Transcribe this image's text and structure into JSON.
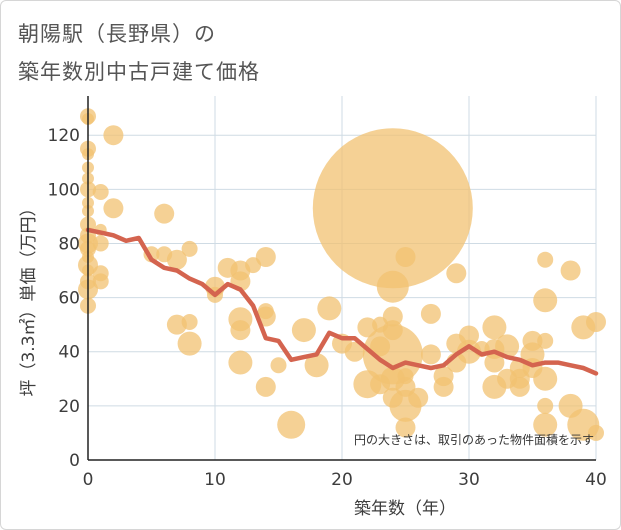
{
  "chart_data": {
    "type": "scatter",
    "title_line1": "朝陽駅（長野県）の",
    "title_line2": "築年数別中古戸建て価格",
    "xlabel": "築年数（年）",
    "ylabel": "坪（3.3㎡）単価（万円）",
    "xlim": [
      0,
      40
    ],
    "ylim": [
      0,
      133
    ],
    "x_ticks": [
      0,
      10,
      20,
      30,
      40
    ],
    "y_ticks": [
      0,
      20,
      40,
      60,
      80,
      100,
      120
    ],
    "note": "円の大きさは、取引のあった物件面積を示す",
    "colors": {
      "bubble": "#f2c171",
      "line": "#d4644f",
      "grid": "#cfdbe4",
      "axis": "#222222"
    },
    "average_line": {
      "x": [
        0,
        1,
        2,
        3,
        4,
        5,
        6,
        7,
        8,
        9,
        10,
        11,
        12,
        13,
        14,
        15,
        16,
        17,
        18,
        19,
        20,
        21,
        22,
        23,
        24,
        25,
        26,
        27,
        28,
        29,
        30,
        31,
        32,
        33,
        34,
        35,
        36,
        37,
        38,
        39,
        40
      ],
      "y": [
        85,
        84,
        83,
        81,
        82,
        74,
        71,
        70,
        67,
        65,
        61,
        65,
        63,
        57,
        45,
        44,
        37,
        38,
        39,
        47,
        45,
        45,
        41,
        37,
        34,
        36,
        35,
        34,
        35,
        39,
        42,
        39,
        40,
        38,
        37,
        35,
        36,
        36,
        35,
        34,
        32
      ]
    },
    "points": [
      {
        "x": 0,
        "y": 127,
        "s": 4
      },
      {
        "x": 0,
        "y": 126,
        "s": 3
      },
      {
        "x": 0,
        "y": 115,
        "s": 4
      },
      {
        "x": 0,
        "y": 113,
        "s": 3
      },
      {
        "x": 0,
        "y": 108,
        "s": 3
      },
      {
        "x": 0,
        "y": 104,
        "s": 3
      },
      {
        "x": 0,
        "y": 100,
        "s": 4
      },
      {
        "x": 0,
        "y": 95,
        "s": 3
      },
      {
        "x": 0,
        "y": 92,
        "s": 3
      },
      {
        "x": 0,
        "y": 87,
        "s": 4
      },
      {
        "x": 0,
        "y": 83,
        "s": 4
      },
      {
        "x": 0,
        "y": 80,
        "s": 5
      },
      {
        "x": 0,
        "y": 78,
        "s": 4
      },
      {
        "x": 0,
        "y": 75,
        "s": 3
      },
      {
        "x": 0,
        "y": 72,
        "s": 5
      },
      {
        "x": 0,
        "y": 70,
        "s": 3
      },
      {
        "x": 0,
        "y": 66,
        "s": 4
      },
      {
        "x": 0,
        "y": 63,
        "s": 5
      },
      {
        "x": 0,
        "y": 57,
        "s": 4
      },
      {
        "x": 1,
        "y": 99,
        "s": 4
      },
      {
        "x": 1,
        "y": 85,
        "s": 3
      },
      {
        "x": 1,
        "y": 80,
        "s": 4
      },
      {
        "x": 1,
        "y": 69,
        "s": 4
      },
      {
        "x": 1,
        "y": 66,
        "s": 4
      },
      {
        "x": 2,
        "y": 120,
        "s": 5
      },
      {
        "x": 2,
        "y": 93,
        "s": 5
      },
      {
        "x": 5,
        "y": 76,
        "s": 4
      },
      {
        "x": 6,
        "y": 91,
        "s": 5
      },
      {
        "x": 6,
        "y": 76,
        "s": 4
      },
      {
        "x": 7,
        "y": 74,
        "s": 5
      },
      {
        "x": 7,
        "y": 50,
        "s": 5
      },
      {
        "x": 8,
        "y": 78,
        "s": 4
      },
      {
        "x": 8,
        "y": 51,
        "s": 4
      },
      {
        "x": 8,
        "y": 43,
        "s": 6
      },
      {
        "x": 10,
        "y": 64,
        "s": 5
      },
      {
        "x": 10,
        "y": 61,
        "s": 4
      },
      {
        "x": 11,
        "y": 71,
        "s": 5
      },
      {
        "x": 12,
        "y": 70,
        "s": 5
      },
      {
        "x": 12,
        "y": 66,
        "s": 5
      },
      {
        "x": 12,
        "y": 52,
        "s": 6
      },
      {
        "x": 12,
        "y": 48,
        "s": 5
      },
      {
        "x": 12,
        "y": 36,
        "s": 6
      },
      {
        "x": 13,
        "y": 72,
        "s": 4
      },
      {
        "x": 14,
        "y": 75,
        "s": 5
      },
      {
        "x": 14,
        "y": 55,
        "s": 4
      },
      {
        "x": 14,
        "y": 53,
        "s": 5
      },
      {
        "x": 14,
        "y": 27,
        "s": 5
      },
      {
        "x": 15,
        "y": 35,
        "s": 4
      },
      {
        "x": 16,
        "y": 13,
        "s": 7
      },
      {
        "x": 17,
        "y": 48,
        "s": 6
      },
      {
        "x": 18,
        "y": 35,
        "s": 6
      },
      {
        "x": 19,
        "y": 56,
        "s": 6
      },
      {
        "x": 20,
        "y": 43,
        "s": 5
      },
      {
        "x": 21,
        "y": 40,
        "s": 5
      },
      {
        "x": 22,
        "y": 49,
        "s": 5
      },
      {
        "x": 22,
        "y": 28,
        "s": 7
      },
      {
        "x": 23,
        "y": 50,
        "s": 4
      },
      {
        "x": 23,
        "y": 42,
        "s": 5
      },
      {
        "x": 23,
        "y": 28,
        "s": 5
      },
      {
        "x": 24,
        "y": 93,
        "s": 40
      },
      {
        "x": 24,
        "y": 64,
        "s": 8
      },
      {
        "x": 24,
        "y": 53,
        "s": 5
      },
      {
        "x": 24,
        "y": 48,
        "s": 5
      },
      {
        "x": 24,
        "y": 39,
        "s": 15
      },
      {
        "x": 24,
        "y": 30,
        "s": 6
      },
      {
        "x": 24,
        "y": 23,
        "s": 5
      },
      {
        "x": 25,
        "y": 75,
        "s": 5
      },
      {
        "x": 25,
        "y": 31,
        "s": 4
      },
      {
        "x": 25,
        "y": 27,
        "s": 5
      },
      {
        "x": 25,
        "y": 20,
        "s": 8
      },
      {
        "x": 25,
        "y": 12,
        "s": 5
      },
      {
        "x": 26,
        "y": 23,
        "s": 5
      },
      {
        "x": 27,
        "y": 54,
        "s": 5
      },
      {
        "x": 27,
        "y": 39,
        "s": 5
      },
      {
        "x": 28,
        "y": 31,
        "s": 5
      },
      {
        "x": 28,
        "y": 27,
        "s": 5
      },
      {
        "x": 29,
        "y": 69,
        "s": 5
      },
      {
        "x": 29,
        "y": 43,
        "s": 5
      },
      {
        "x": 29,
        "y": 36,
        "s": 5
      },
      {
        "x": 30,
        "y": 46,
        "s": 5
      },
      {
        "x": 30,
        "y": 40,
        "s": 6
      },
      {
        "x": 31,
        "y": 41,
        "s": 4
      },
      {
        "x": 32,
        "y": 49,
        "s": 6
      },
      {
        "x": 32,
        "y": 41,
        "s": 5
      },
      {
        "x": 32,
        "y": 36,
        "s": 5
      },
      {
        "x": 32,
        "y": 27,
        "s": 6
      },
      {
        "x": 33,
        "y": 42,
        "s": 6
      },
      {
        "x": 33,
        "y": 30,
        "s": 5
      },
      {
        "x": 34,
        "y": 34,
        "s": 5
      },
      {
        "x": 34,
        "y": 30,
        "s": 5
      },
      {
        "x": 34,
        "y": 27,
        "s": 5
      },
      {
        "x": 35,
        "y": 44,
        "s": 5
      },
      {
        "x": 35,
        "y": 39,
        "s": 6
      },
      {
        "x": 35,
        "y": 34,
        "s": 5
      },
      {
        "x": 36,
        "y": 74,
        "s": 4
      },
      {
        "x": 36,
        "y": 59,
        "s": 6
      },
      {
        "x": 36,
        "y": 44,
        "s": 4
      },
      {
        "x": 36,
        "y": 30,
        "s": 6
      },
      {
        "x": 36,
        "y": 20,
        "s": 4
      },
      {
        "x": 36,
        "y": 13,
        "s": 6
      },
      {
        "x": 38,
        "y": 70,
        "s": 5
      },
      {
        "x": 38,
        "y": 20,
        "s": 6
      },
      {
        "x": 39,
        "y": 49,
        "s": 6
      },
      {
        "x": 39,
        "y": 13,
        "s": 8
      },
      {
        "x": 40,
        "y": 51,
        "s": 5
      },
      {
        "x": 40,
        "y": 10,
        "s": 4
      }
    ]
  }
}
